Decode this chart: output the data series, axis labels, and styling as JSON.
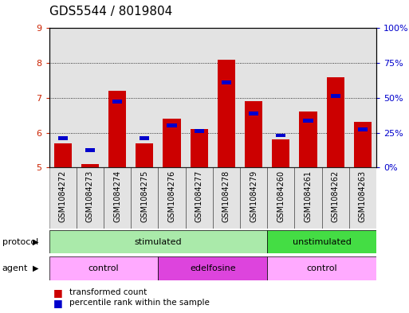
{
  "title": "GDS5544 / 8019804",
  "samples": [
    "GSM1084272",
    "GSM1084273",
    "GSM1084274",
    "GSM1084275",
    "GSM1084276",
    "GSM1084277",
    "GSM1084278",
    "GSM1084279",
    "GSM1084260",
    "GSM1084261",
    "GSM1084262",
    "GSM1084263"
  ],
  "red_values": [
    5.7,
    5.1,
    7.2,
    5.7,
    6.4,
    6.1,
    8.1,
    6.9,
    5.8,
    6.6,
    7.6,
    6.3
  ],
  "blue_values": [
    5.85,
    5.5,
    6.9,
    5.85,
    6.2,
    6.05,
    7.45,
    6.55,
    5.92,
    6.35,
    7.05,
    6.1
  ],
  "red_base": 5.0,
  "ylim_left": [
    5.0,
    9.0
  ],
  "ylim_right": [
    0,
    100
  ],
  "right_ticks": [
    0,
    25,
    50,
    75,
    100
  ],
  "right_ticklabels": [
    "0%",
    "25%",
    "50%",
    "75%",
    "100%"
  ],
  "left_ticks": [
    5,
    6,
    7,
    8,
    9
  ],
  "bar_color": "#cc0000",
  "blue_color": "#0000cc",
  "title_fontsize": 11,
  "col_bg_color": "#c8c8c8",
  "protocol_row": [
    {
      "label": "stimulated",
      "start": 0,
      "end": 8,
      "color": "#aaeaaa"
    },
    {
      "label": "unstimulated",
      "start": 8,
      "end": 12,
      "color": "#44dd44"
    }
  ],
  "agent_row": [
    {
      "label": "control",
      "start": 0,
      "end": 4,
      "color": "#ffaaff"
    },
    {
      "label": "edelfosine",
      "start": 4,
      "end": 8,
      "color": "#dd44dd"
    },
    {
      "label": "control",
      "start": 8,
      "end": 12,
      "color": "#ffaaff"
    }
  ],
  "legend_red_label": "transformed count",
  "legend_blue_label": "percentile rank within the sample",
  "protocol_label": "protocol",
  "agent_label": "agent",
  "tick_color_left": "#cc2200",
  "tick_color_right": "#0000cc"
}
